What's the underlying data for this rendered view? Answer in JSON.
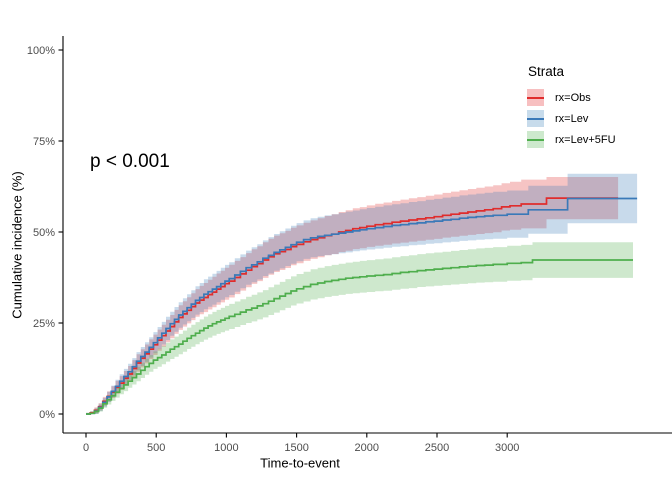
{
  "figure": {
    "background": "#ffffff",
    "p_value_label": "p < 0.001"
  },
  "axes": {
    "x": {
      "title": "Time-to-event",
      "ticks": [
        0,
        500,
        1000,
        1500,
        2000,
        2500,
        3000
      ],
      "tick_labels": [
        "0",
        "500",
        "1000",
        "1500",
        "2000",
        "2500",
        "3000"
      ],
      "tick_color": "#4d4d4d"
    },
    "y": {
      "title": "Cumulative incidence (%)",
      "ticks": [
        0,
        25,
        50,
        75,
        100
      ],
      "tick_labels": [
        "0%",
        "25%",
        "50%",
        "75%",
        "100%"
      ],
      "tick_color": "#4d4d4d"
    }
  },
  "legend": {
    "title": "Strata",
    "items": [
      {
        "label": "rx=Obs",
        "color": "#e02c2c",
        "band_color": "rgba(228,26,28,0.28)"
      },
      {
        "label": "rx=Lev",
        "color": "#3a79b8",
        "band_color": "rgba(55,126,184,0.28)"
      },
      {
        "label": "rx=Lev+5FU",
        "color": "#4fae4d",
        "band_color": "rgba(77,175,74,0.28)"
      }
    ]
  },
  "chart_data": {
    "type": "line",
    "subtype": "kaplan-meier-cumulative-incidence-step-curves-with-confidence-bands",
    "title": "",
    "xlabel": "Time-to-event",
    "ylabel": "Cumulative incidence (%)",
    "xlim": [
      -160,
      4170
    ],
    "ylim": [
      0,
      104
    ],
    "grid": false,
    "legend_position": "inside-top-right",
    "legend_title": "Strata",
    "annotations": [
      {
        "text": "p < 0.001",
        "x": 30,
        "y": 69
      }
    ],
    "point_format": "[time, cumulative_incidence_pct, ci_halfwidth_pct]",
    "series": [
      {
        "name": "rx=Obs",
        "color": "#e02c2c",
        "band_opacity": 0.28,
        "points": [
          [
            0,
            0,
            0.3
          ],
          [
            30,
            0.3,
            0.5
          ],
          [
            60,
            1,
            0.8
          ],
          [
            90,
            2,
            1
          ],
          [
            120,
            3.5,
            1.2
          ],
          [
            150,
            4.8,
            1.4
          ],
          [
            180,
            6,
            1.6
          ],
          [
            210,
            7.3,
            1.8
          ],
          [
            240,
            8.5,
            1.9
          ],
          [
            270,
            9.8,
            2
          ],
          [
            300,
            11,
            2.2
          ],
          [
            330,
            12.5,
            2.3
          ],
          [
            360,
            14,
            2.4
          ],
          [
            390,
            15.3,
            2.5
          ],
          [
            420,
            16.5,
            2.6
          ],
          [
            450,
            17.8,
            2.7
          ],
          [
            480,
            19,
            2.8
          ],
          [
            510,
            20.3,
            2.9
          ],
          [
            540,
            21.5,
            3
          ],
          [
            570,
            22.8,
            3.1
          ],
          [
            600,
            24,
            3.2
          ],
          [
            630,
            25.3,
            3.3
          ],
          [
            660,
            26.5,
            3.4
          ],
          [
            690,
            27.5,
            3.5
          ],
          [
            720,
            28.5,
            3.6
          ],
          [
            750,
            29.5,
            3.7
          ],
          [
            780,
            30.5,
            3.8
          ],
          [
            810,
            31.3,
            3.9
          ],
          [
            840,
            32,
            4
          ],
          [
            870,
            32.8,
            4.1
          ],
          [
            900,
            33.5,
            4.2
          ],
          [
            930,
            34.3,
            4.3
          ],
          [
            960,
            35,
            4.35
          ],
          [
            990,
            35.8,
            4.4
          ],
          [
            1020,
            36.5,
            4.5
          ],
          [
            1060,
            37.5,
            4.55
          ],
          [
            1100,
            38.5,
            4.6
          ],
          [
            1140,
            39.5,
            4.7
          ],
          [
            1180,
            40.5,
            4.75
          ],
          [
            1220,
            41.3,
            4.8
          ],
          [
            1260,
            42.3,
            4.9
          ],
          [
            1300,
            43.2,
            4.95
          ],
          [
            1340,
            44,
            5
          ],
          [
            1380,
            44.6,
            5.05
          ],
          [
            1420,
            45.2,
            5.1
          ],
          [
            1460,
            46,
            5.15
          ],
          [
            1500,
            46.6,
            5.2
          ],
          [
            1550,
            47.3,
            5.25
          ],
          [
            1600,
            47.9,
            5.3
          ],
          [
            1650,
            48.4,
            5.35
          ],
          [
            1700,
            49,
            5.4
          ],
          [
            1750,
            49.4,
            5.45
          ],
          [
            1800,
            50,
            5.5
          ],
          [
            1850,
            50.4,
            5.55
          ],
          [
            1900,
            50.9,
            5.6
          ],
          [
            1950,
            51.2,
            5.65
          ],
          [
            2000,
            51.6,
            5.7
          ],
          [
            2060,
            52,
            5.75
          ],
          [
            2120,
            52.3,
            5.8
          ],
          [
            2180,
            52.7,
            5.85
          ],
          [
            2240,
            53,
            5.9
          ],
          [
            2300,
            53.3,
            5.95
          ],
          [
            2360,
            53.6,
            6
          ],
          [
            2420,
            53.9,
            6.05
          ],
          [
            2480,
            54.2,
            6.1
          ],
          [
            2540,
            54.6,
            6.15
          ],
          [
            2600,
            54.9,
            6.2
          ],
          [
            2660,
            55.2,
            6.25
          ],
          [
            2720,
            55.5,
            6.3
          ],
          [
            2780,
            55.8,
            6.35
          ],
          [
            2840,
            56.1,
            6.4
          ],
          [
            2900,
            56.4,
            6.45
          ],
          [
            2960,
            56.9,
            6.5
          ],
          [
            3020,
            57.2,
            6.6
          ],
          [
            3100,
            57.7,
            6.7
          ],
          [
            3280,
            59.3,
            5.8
          ],
          [
            3790,
            59.3,
            5.8
          ]
        ]
      },
      {
        "name": "rx=Lev",
        "color": "#3a79b8",
        "band_opacity": 0.28,
        "points": [
          [
            0,
            0,
            0.3
          ],
          [
            30,
            0.2,
            0.5
          ],
          [
            60,
            0.8,
            0.8
          ],
          [
            90,
            1.8,
            1
          ],
          [
            120,
            3.2,
            1.2
          ],
          [
            150,
            4.7,
            1.4
          ],
          [
            180,
            6.2,
            1.6
          ],
          [
            210,
            7.6,
            1.8
          ],
          [
            240,
            9,
            1.9
          ],
          [
            270,
            10.3,
            2.1
          ],
          [
            300,
            11.6,
            2.2
          ],
          [
            330,
            13,
            2.35
          ],
          [
            360,
            14.5,
            2.5
          ],
          [
            390,
            15.8,
            2.6
          ],
          [
            420,
            17,
            2.7
          ],
          [
            450,
            18.3,
            2.8
          ],
          [
            480,
            19.6,
            2.9
          ],
          [
            510,
            20.9,
            3
          ],
          [
            540,
            22.2,
            3.1
          ],
          [
            570,
            23.5,
            3.2
          ],
          [
            600,
            24.8,
            3.3
          ],
          [
            630,
            26,
            3.4
          ],
          [
            660,
            27.2,
            3.5
          ],
          [
            690,
            28.2,
            3.6
          ],
          [
            720,
            29.2,
            3.7
          ],
          [
            750,
            30.2,
            3.8
          ],
          [
            780,
            31.2,
            3.9
          ],
          [
            810,
            32,
            4
          ],
          [
            840,
            32.9,
            4.1
          ],
          [
            870,
            33.6,
            4.15
          ],
          [
            900,
            34.3,
            4.25
          ],
          [
            930,
            35,
            4.3
          ],
          [
            960,
            35.8,
            4.4
          ],
          [
            990,
            36.5,
            4.45
          ],
          [
            1020,
            37.2,
            4.5
          ],
          [
            1060,
            38.2,
            4.6
          ],
          [
            1100,
            39.2,
            4.65
          ],
          [
            1140,
            40.2,
            4.7
          ],
          [
            1180,
            41,
            4.8
          ],
          [
            1220,
            41.8,
            4.85
          ],
          [
            1260,
            42.8,
            4.9
          ],
          [
            1300,
            43.6,
            5
          ],
          [
            1340,
            44.4,
            5.05
          ],
          [
            1380,
            45.1,
            5.1
          ],
          [
            1420,
            45.8,
            5.15
          ],
          [
            1460,
            46.5,
            5.2
          ],
          [
            1500,
            47.2,
            5.25
          ],
          [
            1550,
            47.9,
            5.3
          ],
          [
            1600,
            48.4,
            5.35
          ],
          [
            1650,
            48.8,
            5.4
          ],
          [
            1700,
            49.1,
            5.45
          ],
          [
            1750,
            49.4,
            5.5
          ],
          [
            1800,
            49.7,
            5.55
          ],
          [
            1850,
            50,
            5.6
          ],
          [
            1900,
            50.3,
            5.6
          ],
          [
            1950,
            50.6,
            5.65
          ],
          [
            2000,
            50.9,
            5.7
          ],
          [
            2060,
            51.2,
            5.75
          ],
          [
            2120,
            51.5,
            5.8
          ],
          [
            2180,
            51.8,
            5.85
          ],
          [
            2240,
            52,
            5.9
          ],
          [
            2300,
            52.3,
            5.95
          ],
          [
            2360,
            52.5,
            6
          ],
          [
            2420,
            52.8,
            6.05
          ],
          [
            2480,
            53,
            6.1
          ],
          [
            2540,
            53.3,
            6.15
          ],
          [
            2600,
            53.5,
            6.2
          ],
          [
            2660,
            53.8,
            6.25
          ],
          [
            2720,
            54,
            6.3
          ],
          [
            2780,
            54.2,
            6.35
          ],
          [
            2840,
            54.4,
            6.4
          ],
          [
            2900,
            54.6,
            6.45
          ],
          [
            3000,
            54.9,
            6.5
          ],
          [
            3150,
            56.1,
            6.6
          ],
          [
            3430,
            59.2,
            6.8
          ],
          [
            3925,
            59.2,
            6.8
          ]
        ]
      },
      {
        "name": "rx=Lev+5FU",
        "color": "#4fae4d",
        "band_opacity": 0.28,
        "points": [
          [
            0,
            0,
            0.3
          ],
          [
            30,
            0.2,
            0.4
          ],
          [
            60,
            0.7,
            0.7
          ],
          [
            90,
            1.6,
            0.9
          ],
          [
            120,
            2.8,
            1.1
          ],
          [
            150,
            3.9,
            1.3
          ],
          [
            180,
            5,
            1.4
          ],
          [
            210,
            6,
            1.5
          ],
          [
            240,
            7,
            1.6
          ],
          [
            270,
            8,
            1.7
          ],
          [
            300,
            9,
            1.8
          ],
          [
            330,
            10,
            1.9
          ],
          [
            360,
            11,
            2
          ],
          [
            390,
            12,
            2.1
          ],
          [
            420,
            13,
            2.2
          ],
          [
            450,
            13.9,
            2.3
          ],
          [
            480,
            14.8,
            2.4
          ],
          [
            510,
            15.5,
            2.5
          ],
          [
            540,
            16.2,
            2.55
          ],
          [
            570,
            17,
            2.6
          ],
          [
            600,
            17.8,
            2.7
          ],
          [
            630,
            18.5,
            2.75
          ],
          [
            660,
            19.2,
            2.8
          ],
          [
            690,
            20,
            2.9
          ],
          [
            720,
            20.8,
            2.95
          ],
          [
            750,
            21.5,
            3
          ],
          [
            780,
            22.2,
            3.05
          ],
          [
            810,
            22.9,
            3.1
          ],
          [
            840,
            23.6,
            3.15
          ],
          [
            870,
            24.2,
            3.2
          ],
          [
            900,
            24.8,
            3.25
          ],
          [
            930,
            25.3,
            3.3
          ],
          [
            960,
            25.8,
            3.35
          ],
          [
            990,
            26.3,
            3.4
          ],
          [
            1020,
            26.8,
            3.45
          ],
          [
            1060,
            27.4,
            3.5
          ],
          [
            1100,
            28,
            3.55
          ],
          [
            1140,
            28.6,
            3.6
          ],
          [
            1180,
            29.1,
            3.65
          ],
          [
            1220,
            29.7,
            3.7
          ],
          [
            1260,
            30.3,
            3.75
          ],
          [
            1300,
            31,
            3.8
          ],
          [
            1340,
            31.7,
            3.85
          ],
          [
            1380,
            32.4,
            3.9
          ],
          [
            1420,
            33.1,
            3.95
          ],
          [
            1460,
            33.8,
            4
          ],
          [
            1500,
            34.4,
            4.05
          ],
          [
            1550,
            35,
            4.1
          ],
          [
            1600,
            35.6,
            4.15
          ],
          [
            1650,
            36,
            4.2
          ],
          [
            1700,
            36.4,
            4.22
          ],
          [
            1750,
            36.7,
            4.25
          ],
          [
            1800,
            37,
            4.28
          ],
          [
            1850,
            37.3,
            4.3
          ],
          [
            1900,
            37.5,
            4.32
          ],
          [
            1950,
            37.7,
            4.35
          ],
          [
            2000,
            37.9,
            4.38
          ],
          [
            2060,
            38.1,
            4.4
          ],
          [
            2120,
            38.3,
            4.42
          ],
          [
            2180,
            38.6,
            4.45
          ],
          [
            2240,
            38.9,
            4.48
          ],
          [
            2300,
            39.1,
            4.5
          ],
          [
            2360,
            39.4,
            4.52
          ],
          [
            2420,
            39.6,
            4.55
          ],
          [
            2480,
            39.8,
            4.58
          ],
          [
            2540,
            40,
            4.6
          ],
          [
            2600,
            40.2,
            4.62
          ],
          [
            2660,
            40.4,
            4.65
          ],
          [
            2720,
            40.6,
            4.68
          ],
          [
            2780,
            40.8,
            4.7
          ],
          [
            2840,
            40.9,
            4.72
          ],
          [
            2900,
            41.1,
            4.75
          ],
          [
            3000,
            41.4,
            4.8
          ],
          [
            3100,
            41.6,
            4.85
          ],
          [
            3180,
            42.3,
            4.9
          ],
          [
            3896,
            42.3,
            4.9
          ]
        ]
      }
    ]
  }
}
